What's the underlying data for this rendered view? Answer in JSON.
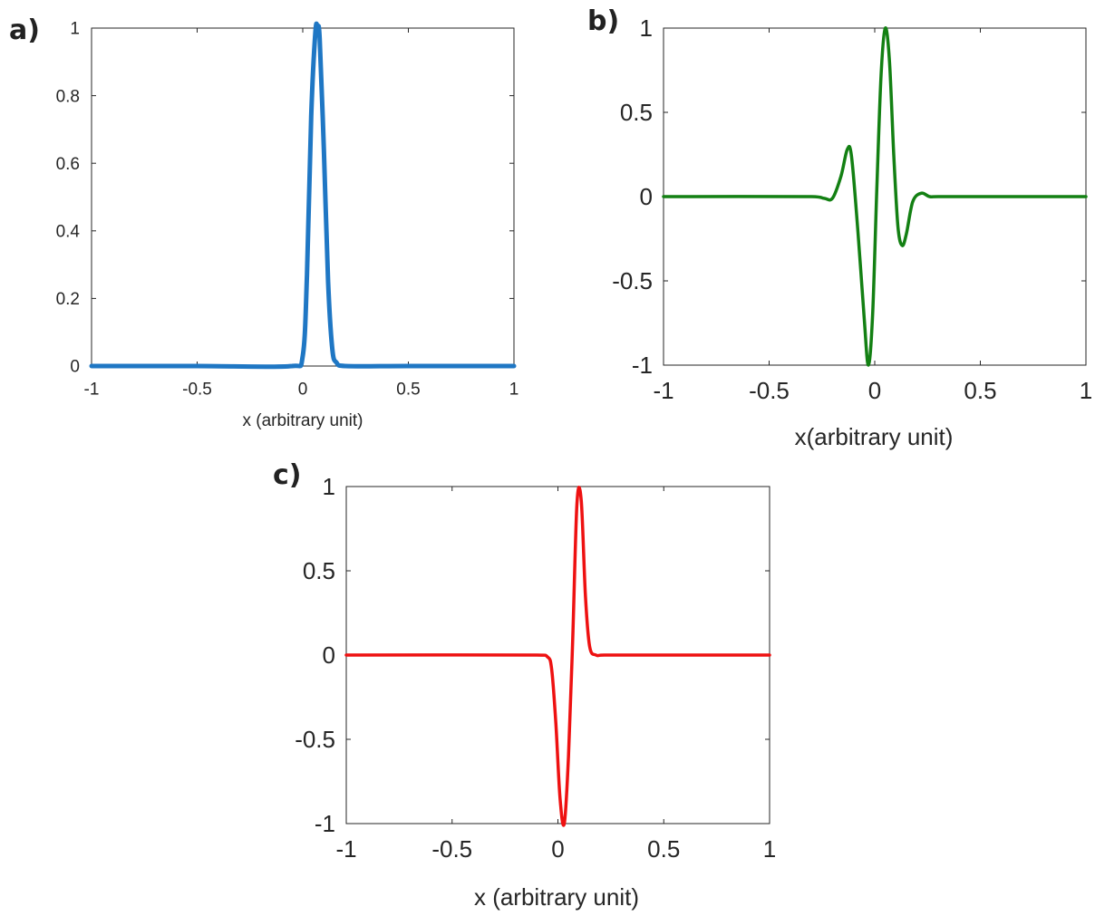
{
  "chart_data": [
    {
      "panel": "a)",
      "type": "line",
      "xlabel": "x (arbitrary unit)",
      "ylabel": "",
      "xlim": [
        -1,
        1
      ],
      "ylim": [
        0,
        1
      ],
      "xticks": [
        "-1",
        "-0.5",
        "0",
        "0.5",
        "1"
      ],
      "yticks": [
        "0",
        "0.2",
        "0.4",
        "0.6",
        "0.8",
        "1"
      ],
      "grid": false,
      "color": "#1f77c4",
      "series": [
        {
          "x": [
            -1,
            -0.5,
            -0.05,
            0.0,
            0.02,
            0.04,
            0.06,
            0.07,
            0.08,
            0.1,
            0.12,
            0.14,
            0.16,
            0.2,
            0.5,
            1
          ],
          "y": [
            0,
            0,
            0.0,
            0.03,
            0.27,
            0.74,
            0.99,
            1.0,
            0.97,
            0.64,
            0.25,
            0.05,
            0.01,
            0,
            0,
            0
          ]
        }
      ]
    },
    {
      "panel": "b)",
      "type": "line",
      "xlabel": "x(arbitrary unit)",
      "ylabel": "",
      "xlim": [
        -1,
        1
      ],
      "ylim": [
        -1,
        1
      ],
      "xticks": [
        "-1",
        "-0.5",
        "0",
        "0.5",
        "1"
      ],
      "yticks": [
        "-1",
        "-0.5",
        "0",
        "0.5",
        "1"
      ],
      "grid": false,
      "color": "#138013",
      "series": [
        {
          "x": [
            -1,
            -0.3,
            -0.24,
            -0.2,
            -0.16,
            -0.13,
            -0.11,
            -0.08,
            -0.05,
            -0.03,
            -0.01,
            0.01,
            0.03,
            0.05,
            0.07,
            0.09,
            0.11,
            0.13,
            0.15,
            0.18,
            0.22,
            0.26,
            0.3,
            1
          ],
          "y": [
            0,
            0,
            -0.01,
            -0.01,
            0.12,
            0.28,
            0.24,
            -0.2,
            -0.72,
            -1.0,
            -0.7,
            0.05,
            0.72,
            1.0,
            0.8,
            0.25,
            -0.18,
            -0.29,
            -0.22,
            -0.03,
            0.02,
            0.0,
            0,
            0
          ]
        }
      ]
    },
    {
      "panel": "c)",
      "type": "line",
      "xlabel": "x (arbitrary unit)",
      "ylabel": "",
      "xlim": [
        -1,
        1
      ],
      "ylim": [
        -1,
        1
      ],
      "xticks": [
        "-1",
        "-0.5",
        "0",
        "0.5",
        "1"
      ],
      "yticks": [
        "-1",
        "-0.5",
        "0",
        "0.5",
        "1"
      ],
      "grid": false,
      "color": "#ee1111",
      "series": [
        {
          "x": [
            -1,
            -0.1,
            -0.05,
            -0.03,
            -0.01,
            0.01,
            0.03,
            0.05,
            0.07,
            0.09,
            0.11,
            0.13,
            0.15,
            0.18,
            0.22,
            1
          ],
          "y": [
            0,
            0,
            -0.01,
            -0.08,
            -0.4,
            -0.85,
            -1.0,
            -0.6,
            0.1,
            0.9,
            0.92,
            0.35,
            0.05,
            0.0,
            0,
            0
          ]
        }
      ]
    }
  ]
}
